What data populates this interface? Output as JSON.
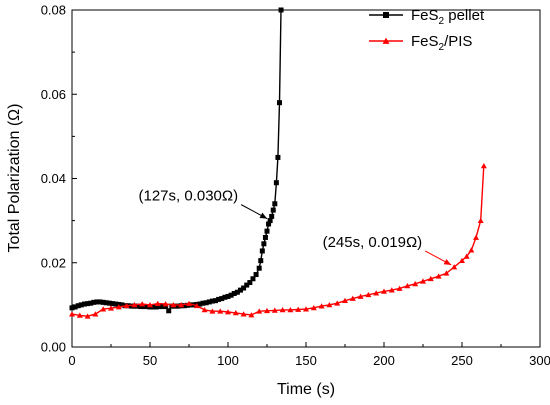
{
  "chart_data": {
    "type": "line",
    "title": "",
    "xlabel": "Time (s)",
    "ylabel": "Total Polarization (Ω)",
    "xlim": [
      0,
      300
    ],
    "ylim": [
      0,
      0.08
    ],
    "xticks": [
      0,
      50,
      100,
      150,
      200,
      250,
      300
    ],
    "yticks": [
      0.0,
      0.02,
      0.04,
      0.06,
      0.08
    ],
    "xtick_labels": [
      "0",
      "50",
      "100",
      "150",
      "200",
      "250",
      "300"
    ],
    "ytick_labels": [
      "0.00",
      "0.02",
      "0.04",
      "0.06",
      "0.08"
    ],
    "grid": false,
    "legend_position": "top-right",
    "series": [
      {
        "name_main": "FeS",
        "name_sub": "2",
        "name_rest": " pellet",
        "color": "#000000",
        "marker": "square",
        "x": [
          0,
          2,
          4,
          6,
          8,
          10,
          12,
          14,
          16,
          18,
          20,
          22,
          24,
          26,
          28,
          30,
          32,
          34,
          36,
          38,
          40,
          42,
          44,
          46,
          48,
          50,
          52,
          54,
          56,
          58,
          60,
          62,
          64,
          66,
          68,
          70,
          72,
          74,
          76,
          78,
          80,
          82,
          84,
          86,
          88,
          90,
          92,
          94,
          96,
          98,
          100,
          102,
          104,
          106,
          108,
          110,
          112,
          114,
          116,
          118,
          120,
          121,
          122,
          123,
          124,
          125,
          126,
          127,
          128,
          129,
          130,
          131,
          132,
          133,
          134
        ],
        "y": [
          0.0093,
          0.0095,
          0.0098,
          0.01,
          0.0102,
          0.0103,
          0.0104,
          0.0106,
          0.0107,
          0.0107,
          0.0106,
          0.0105,
          0.0104,
          0.0103,
          0.0102,
          0.0101,
          0.01,
          0.0098,
          0.0098,
          0.0097,
          0.0097,
          0.0097,
          0.0096,
          0.0096,
          0.0096,
          0.0095,
          0.0095,
          0.0095,
          0.0096,
          0.0096,
          0.0096,
          0.0086,
          0.0097,
          0.0097,
          0.0097,
          0.0098,
          0.0098,
          0.0099,
          0.01,
          0.01,
          0.0101,
          0.0102,
          0.0104,
          0.0105,
          0.0107,
          0.0109,
          0.011,
          0.0113,
          0.0115,
          0.0118,
          0.012,
          0.0123,
          0.0127,
          0.013,
          0.0135,
          0.014,
          0.0147,
          0.0153,
          0.0162,
          0.0172,
          0.0187,
          0.0205,
          0.0228,
          0.0245,
          0.026,
          0.0275,
          0.0292,
          0.03,
          0.031,
          0.0325,
          0.034,
          0.039,
          0.045,
          0.058,
          0.08
        ]
      },
      {
        "name_main": "FeS",
        "name_sub": "2",
        "name_rest": "/PIS",
        "color": "#ff0000",
        "marker": "triangle",
        "x": [
          0,
          5,
          10,
          15,
          20,
          25,
          30,
          35,
          40,
          45,
          50,
          55,
          60,
          65,
          70,
          75,
          80,
          85,
          90,
          95,
          100,
          105,
          110,
          115,
          120,
          125,
          130,
          135,
          140,
          145,
          150,
          155,
          160,
          165,
          170,
          175,
          180,
          185,
          190,
          195,
          200,
          205,
          210,
          215,
          220,
          225,
          230,
          235,
          240,
          245,
          250,
          253,
          256,
          259,
          262,
          264
        ],
        "y": [
          0.0078,
          0.0075,
          0.0073,
          0.0078,
          0.009,
          0.0092,
          0.0095,
          0.0098,
          0.01,
          0.0102,
          0.01,
          0.0103,
          0.0102,
          0.01,
          0.01,
          0.0103,
          0.0098,
          0.0088,
          0.0085,
          0.0085,
          0.0083,
          0.0081,
          0.0078,
          0.0076,
          0.0085,
          0.0086,
          0.0087,
          0.0088,
          0.0088,
          0.0089,
          0.009,
          0.0093,
          0.0097,
          0.01,
          0.0104,
          0.011,
          0.0115,
          0.012,
          0.0124,
          0.0128,
          0.0132,
          0.0135,
          0.0139,
          0.0145,
          0.015,
          0.0156,
          0.0162,
          0.0168,
          0.0175,
          0.019,
          0.0205,
          0.0215,
          0.023,
          0.026,
          0.03,
          0.043
        ]
      }
    ],
    "annotations": [
      {
        "text": "(127s, 0.030Ω)",
        "x": 127,
        "y": 0.03,
        "label_at": "left",
        "color": "#000000"
      },
      {
        "text": "(245s, 0.019Ω)",
        "x": 245,
        "y": 0.019,
        "label_at": "left",
        "color": "#ff0000"
      }
    ]
  }
}
